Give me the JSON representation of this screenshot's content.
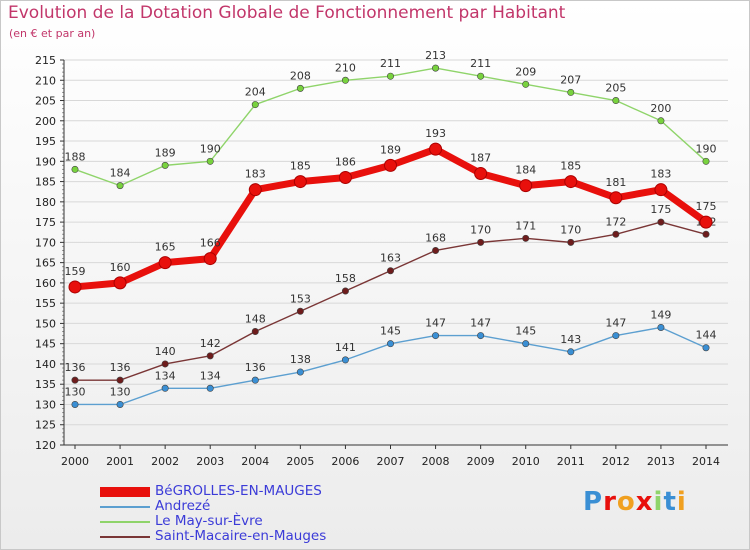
{
  "header": {
    "title": "Evolution de la Dotation Globale de Fonctionnement par Habitant",
    "subtitle": "(en € et par an)"
  },
  "logo": {
    "text": "Proxiti"
  },
  "colors": {
    "title": "#c2366a",
    "grid": "#d8d8d8",
    "axis": "#333333",
    "legend_text": "#3b3bd8"
  },
  "chart_data": {
    "type": "line",
    "title": "Evolution de la Dotation Globale de Fonctionnement par Habitant",
    "subtitle": "(en € et par an)",
    "xlabel": "",
    "ylabel": "",
    "ylim": [
      120,
      215
    ],
    "yticks": [
      120,
      125,
      130,
      135,
      140,
      145,
      150,
      155,
      160,
      165,
      170,
      175,
      180,
      185,
      190,
      195,
      200,
      205,
      210,
      215
    ],
    "grid": true,
    "legend_position": "bottom-left",
    "categories": [
      "2000",
      "2001",
      "2002",
      "2003",
      "2004",
      "2005",
      "2006",
      "2007",
      "2008",
      "2009",
      "2010",
      "2011",
      "2012",
      "2013",
      "2014"
    ],
    "series": [
      {
        "name": "BéGROLLES-EN-MAUGES",
        "color": "#e8100c",
        "marker": "#b81010",
        "bold": true,
        "values": [
          159,
          160,
          165,
          166,
          183,
          185,
          186,
          189,
          193,
          187,
          184,
          185,
          181,
          183,
          175
        ]
      },
      {
        "name": "Andrezé",
        "color": "#5c9fd0",
        "marker": "#3a8fd4",
        "values": [
          130,
          130,
          134,
          134,
          136,
          138,
          141,
          145,
          147,
          147,
          145,
          143,
          147,
          149,
          144
        ]
      },
      {
        "name": "Le May-sur-Èvre",
        "color": "#8fd46a",
        "marker": "#78d23e",
        "values": [
          188,
          184,
          189,
          190,
          204,
          208,
          210,
          211,
          213,
          211,
          209,
          207,
          205,
          200,
          190
        ]
      },
      {
        "name": "Saint-Macaire-en-Mauges",
        "color": "#7a3636",
        "marker": "#6e1c1c",
        "values": [
          136,
          136,
          140,
          142,
          148,
          153,
          158,
          163,
          168,
          170,
          171,
          170,
          172,
          175,
          172
        ]
      }
    ]
  }
}
